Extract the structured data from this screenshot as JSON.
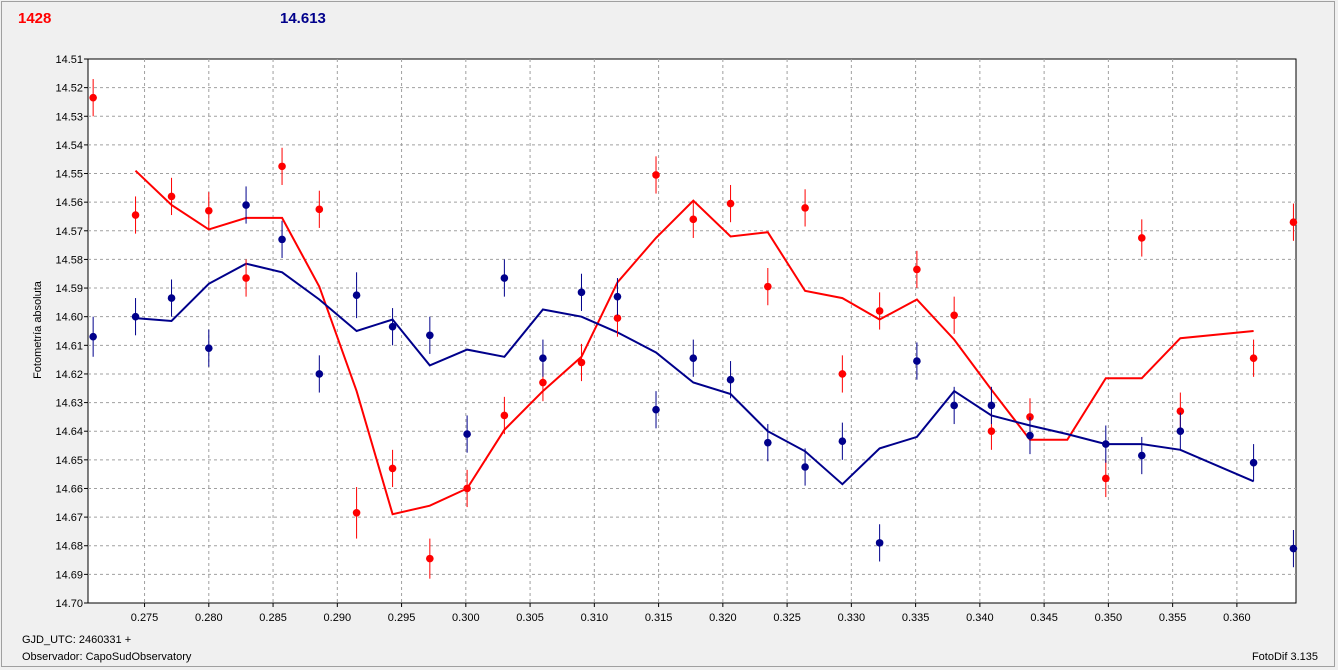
{
  "readouts": {
    "red": "1428",
    "blue": "14.613"
  },
  "footer": {
    "gjd": "GJD_UTC: 2460331 +",
    "observer": "Observador: CapoSudObservatory",
    "app": "FotoDif 3.135"
  },
  "colors": {
    "red": "#ff0000",
    "blue": "#00008b",
    "grid": "#a0a0a0"
  },
  "chart_data": {
    "type": "scatter",
    "title": "",
    "xlabel": "",
    "ylabel": "Fotometría absoluta",
    "xlim": [
      0.2706,
      0.3646
    ],
    "ylim": [
      14.51,
      14.7
    ],
    "y_inverted": true,
    "grid": true,
    "x_ticks": [
      "0.275",
      "0.280",
      "0.285",
      "0.290",
      "0.295",
      "0.300",
      "0.305",
      "0.310",
      "0.315",
      "0.320",
      "0.325",
      "0.330",
      "0.335",
      "0.340",
      "0.345",
      "0.350",
      "0.355",
      "0.360"
    ],
    "y_ticks": [
      "14.51",
      "14.52",
      "14.53",
      "14.54",
      "14.55",
      "14.56",
      "14.57",
      "14.58",
      "14.59",
      "14.60",
      "14.61",
      "14.62",
      "14.63",
      "14.64",
      "14.65",
      "14.66",
      "14.67",
      "14.68",
      "14.69",
      "14.70"
    ],
    "series": [
      {
        "color": "#ff0000",
        "points": [
          {
            "x": 0.271,
            "y": 14.5235,
            "err": 0.0065
          },
          {
            "x": 0.2743,
            "y": 14.5645,
            "err": 0.0065
          },
          {
            "x": 0.2771,
            "y": 14.558,
            "err": 0.0065
          },
          {
            "x": 0.28,
            "y": 14.563,
            "err": 0.0065
          },
          {
            "x": 0.2829,
            "y": 14.5865,
            "err": 0.0065
          },
          {
            "x": 0.2857,
            "y": 14.5475,
            "err": 0.0065
          },
          {
            "x": 0.2886,
            "y": 14.5625,
            "err": 0.0065
          },
          {
            "x": 0.2915,
            "y": 14.6685,
            "err": 0.009
          },
          {
            "x": 0.2943,
            "y": 14.653,
            "err": 0.0065
          },
          {
            "x": 0.2972,
            "y": 14.6845,
            "err": 0.007
          },
          {
            "x": 0.3001,
            "y": 14.66,
            "err": 0.0065
          },
          {
            "x": 0.303,
            "y": 14.6345,
            "err": 0.0065
          },
          {
            "x": 0.306,
            "y": 14.623,
            "err": 0.0065
          },
          {
            "x": 0.309,
            "y": 14.616,
            "err": 0.0065
          },
          {
            "x": 0.3118,
            "y": 14.6005,
            "err": 0.0065
          },
          {
            "x": 0.3148,
            "y": 14.5505,
            "err": 0.0065
          },
          {
            "x": 0.3177,
            "y": 14.566,
            "err": 0.0065
          },
          {
            "x": 0.3206,
            "y": 14.5605,
            "err": 0.0065
          },
          {
            "x": 0.3235,
            "y": 14.5895,
            "err": 0.0065
          },
          {
            "x": 0.3264,
            "y": 14.562,
            "err": 0.0065
          },
          {
            "x": 0.3293,
            "y": 14.62,
            "err": 0.0065
          },
          {
            "x": 0.3322,
            "y": 14.598,
            "err": 0.0065
          },
          {
            "x": 0.3351,
            "y": 14.5835,
            "err": 0.0065
          },
          {
            "x": 0.338,
            "y": 14.5995,
            "err": 0.0065
          },
          {
            "x": 0.3409,
            "y": 14.64,
            "err": 0.0065
          },
          {
            "x": 0.3439,
            "y": 14.635,
            "err": 0.0065
          },
          {
            "x": 0.3498,
            "y": 14.6565,
            "err": 0.0065
          },
          {
            "x": 0.3526,
            "y": 14.5725,
            "err": 0.0065
          },
          {
            "x": 0.3556,
            "y": 14.633,
            "err": 0.0065
          },
          {
            "x": 0.3613,
            "y": 14.6145,
            "err": 0.0065
          },
          {
            "x": 0.3644,
            "y": 14.567,
            "err": 0.0065
          }
        ],
        "trend": [
          [
            0.2743,
            14.549
          ],
          [
            0.2771,
            14.561
          ],
          [
            0.28,
            14.5695
          ],
          [
            0.2829,
            14.5655
          ],
          [
            0.2857,
            14.5655
          ],
          [
            0.2886,
            14.5895
          ],
          [
            0.2915,
            14.626
          ],
          [
            0.2943,
            14.669
          ],
          [
            0.2972,
            14.666
          ],
          [
            0.3001,
            14.66
          ],
          [
            0.303,
            14.6395
          ],
          [
            0.306,
            14.626
          ],
          [
            0.309,
            14.614
          ],
          [
            0.3118,
            14.588
          ],
          [
            0.3148,
            14.5725
          ],
          [
            0.3177,
            14.5595
          ],
          [
            0.3206,
            14.572
          ],
          [
            0.3235,
            14.5705
          ],
          [
            0.3264,
            14.591
          ],
          [
            0.3293,
            14.5935
          ],
          [
            0.3322,
            14.601
          ],
          [
            0.3351,
            14.594
          ],
          [
            0.338,
            14.608
          ],
          [
            0.3409,
            14.6255
          ],
          [
            0.3439,
            14.643
          ],
          [
            0.3468,
            14.643
          ],
          [
            0.3498,
            14.6215
          ],
          [
            0.3526,
            14.6215
          ],
          [
            0.3556,
            14.6075
          ],
          [
            0.3613,
            14.605
          ]
        ]
      },
      {
        "color": "#00008b",
        "points": [
          {
            "x": 0.271,
            "y": 14.607,
            "err": 0.007
          },
          {
            "x": 0.2743,
            "y": 14.6,
            "err": 0.0065
          },
          {
            "x": 0.2771,
            "y": 14.5935,
            "err": 0.0065
          },
          {
            "x": 0.28,
            "y": 14.611,
            "err": 0.0065
          },
          {
            "x": 0.2829,
            "y": 14.561,
            "err": 0.0065
          },
          {
            "x": 0.2857,
            "y": 14.573,
            "err": 0.0065
          },
          {
            "x": 0.2886,
            "y": 14.62,
            "err": 0.0065
          },
          {
            "x": 0.2915,
            "y": 14.5925,
            "err": 0.008
          },
          {
            "x": 0.2943,
            "y": 14.6035,
            "err": 0.0065
          },
          {
            "x": 0.2972,
            "y": 14.6065,
            "err": 0.0065
          },
          {
            "x": 0.3001,
            "y": 14.641,
            "err": 0.0065
          },
          {
            "x": 0.303,
            "y": 14.5865,
            "err": 0.0065
          },
          {
            "x": 0.306,
            "y": 14.6145,
            "err": 0.0065
          },
          {
            "x": 0.309,
            "y": 14.5915,
            "err": 0.0065
          },
          {
            "x": 0.3118,
            "y": 14.593,
            "err": 0.0065
          },
          {
            "x": 0.3148,
            "y": 14.6325,
            "err": 0.0065
          },
          {
            "x": 0.3177,
            "y": 14.6145,
            "err": 0.0065
          },
          {
            "x": 0.3206,
            "y": 14.622,
            "err": 0.0065
          },
          {
            "x": 0.3235,
            "y": 14.644,
            "err": 0.0065
          },
          {
            "x": 0.3264,
            "y": 14.6525,
            "err": 0.0065
          },
          {
            "x": 0.3293,
            "y": 14.6435,
            "err": 0.0065
          },
          {
            "x": 0.3322,
            "y": 14.679,
            "err": 0.0065
          },
          {
            "x": 0.3351,
            "y": 14.6155,
            "err": 0.0065
          },
          {
            "x": 0.338,
            "y": 14.631,
            "err": 0.0065
          },
          {
            "x": 0.3409,
            "y": 14.631,
            "err": 0.0065
          },
          {
            "x": 0.3439,
            "y": 14.6415,
            "err": 0.0065
          },
          {
            "x": 0.3498,
            "y": 14.6445,
            "err": 0.0065
          },
          {
            "x": 0.3526,
            "y": 14.6485,
            "err": 0.0065
          },
          {
            "x": 0.3556,
            "y": 14.64,
            "err": 0.0065
          },
          {
            "x": 0.3613,
            "y": 14.651,
            "err": 0.0065
          },
          {
            "x": 0.3644,
            "y": 14.681,
            "err": 0.0065
          }
        ],
        "trend": [
          [
            0.2743,
            14.6005
          ],
          [
            0.2771,
            14.6015
          ],
          [
            0.28,
            14.5885
          ],
          [
            0.2829,
            14.5815
          ],
          [
            0.2857,
            14.5845
          ],
          [
            0.2886,
            14.594
          ],
          [
            0.2915,
            14.605
          ],
          [
            0.2943,
            14.601
          ],
          [
            0.2972,
            14.617
          ],
          [
            0.3001,
            14.6115
          ],
          [
            0.303,
            14.614
          ],
          [
            0.306,
            14.5975
          ],
          [
            0.309,
            14.6
          ],
          [
            0.3118,
            14.6055
          ],
          [
            0.3148,
            14.6125
          ],
          [
            0.3177,
            14.623
          ],
          [
            0.3206,
            14.627
          ],
          [
            0.3235,
            14.64
          ],
          [
            0.3264,
            14.647
          ],
          [
            0.3293,
            14.6585
          ],
          [
            0.3322,
            14.646
          ],
          [
            0.3351,
            14.642
          ],
          [
            0.338,
            14.626
          ],
          [
            0.3409,
            14.6345
          ],
          [
            0.3439,
            14.638
          ],
          [
            0.3468,
            14.641
          ],
          [
            0.3498,
            14.6445
          ],
          [
            0.3526,
            14.6445
          ],
          [
            0.3556,
            14.6465
          ],
          [
            0.3613,
            14.6575
          ]
        ]
      }
    ]
  }
}
